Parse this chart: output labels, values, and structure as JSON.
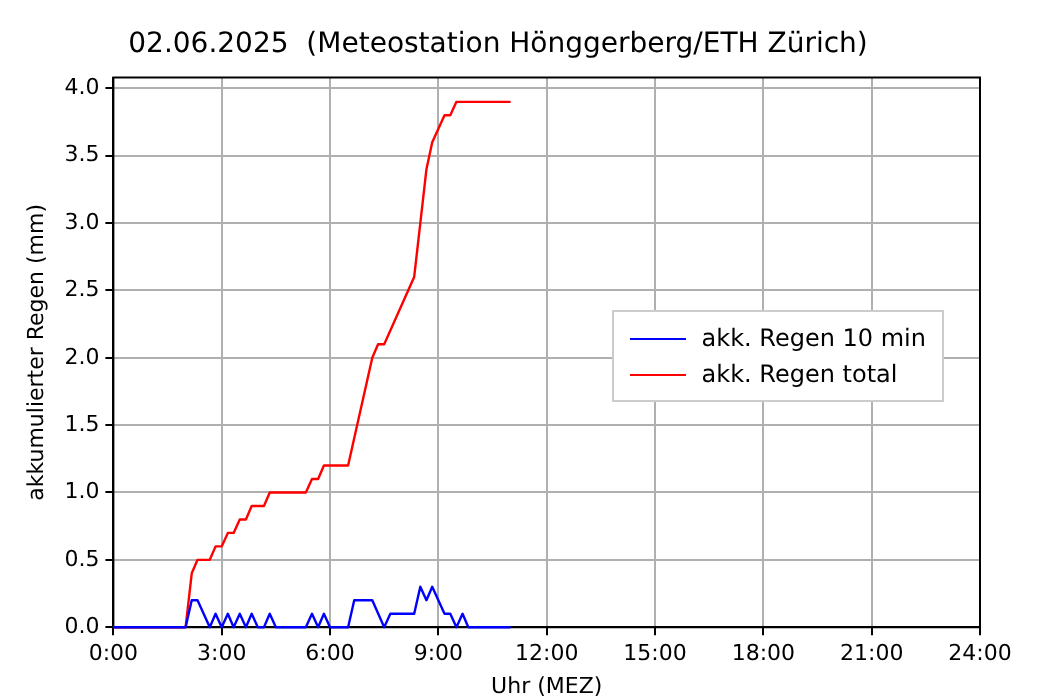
{
  "chart_data": {
    "type": "line",
    "title": "02.06.2025  (Meteostation Hönggerberg/ETH Zürich)",
    "xlabel": "Uhr (MEZ)",
    "ylabel": "akkumulierter Regen (mm)",
    "xlim": [
      0,
      24
    ],
    "xticks": [
      {
        "value": 0,
        "label": "0:00"
      },
      {
        "value": 3,
        "label": "3:00"
      },
      {
        "value": 6,
        "label": "6:00"
      },
      {
        "value": 9,
        "label": "9:00"
      },
      {
        "value": 12,
        "label": "12:00"
      },
      {
        "value": 15,
        "label": "15:00"
      },
      {
        "value": 18,
        "label": "18:00"
      },
      {
        "value": 21,
        "label": "21:00"
      },
      {
        "value": 24,
        "label": "24:00"
      }
    ],
    "ylim": [
      0,
      4.08
    ],
    "yticks": [
      {
        "value": 0,
        "label": "0.0"
      },
      {
        "value": 0.5,
        "label": "0.5"
      },
      {
        "value": 1,
        "label": "1.0"
      },
      {
        "value": 1.5,
        "label": "1.5"
      },
      {
        "value": 2,
        "label": "2.0"
      },
      {
        "value": 2.5,
        "label": "2.5"
      },
      {
        "value": 3,
        "label": "3.0"
      },
      {
        "value": 3.5,
        "label": "3.5"
      },
      {
        "value": 4,
        "label": "4.0"
      }
    ],
    "grid": true,
    "legend": "right",
    "marker": "none",
    "line_style": "solid",
    "series": [
      {
        "name": "akk. Regen 10 min",
        "color": "#0000ff",
        "x": [
          0,
          2,
          2.17,
          2.33,
          2.67,
          2.83,
          3,
          3.17,
          3.33,
          3.5,
          3.67,
          3.83,
          4,
          4.17,
          4.33,
          4.5,
          5.33,
          5.5,
          5.67,
          5.83,
          6,
          6.5,
          6.67,
          7.17,
          7.5,
          7.67,
          8.33,
          8.5,
          8.67,
          8.83,
          9.17,
          9.33,
          9.5,
          9.67,
          9.83,
          11
        ],
        "values": [
          0,
          0,
          0.2,
          0.2,
          0,
          0.1,
          0,
          0.1,
          0,
          0.1,
          0,
          0.1,
          0,
          0,
          0.1,
          0,
          0,
          0.1,
          0,
          0.1,
          0,
          0,
          0.2,
          0.2,
          0,
          0.1,
          0.1,
          0.3,
          0.2,
          0.3,
          0.1,
          0.1,
          0,
          0.1,
          0,
          0
        ]
      },
      {
        "name": "akk. Regen total",
        "color": "#ff0000",
        "x": [
          0,
          2,
          2.17,
          2.33,
          2.67,
          2.83,
          3,
          3.17,
          3.33,
          3.5,
          3.67,
          3.83,
          4.17,
          4.33,
          5.33,
          5.5,
          5.67,
          5.83,
          6.5,
          7.17,
          7.33,
          7.5,
          8.33,
          8.5,
          8.67,
          8.83,
          9,
          9.17,
          9.33,
          9.5,
          9.67,
          11
        ],
        "values": [
          0,
          0,
          0.4,
          0.5,
          0.5,
          0.6,
          0.6,
          0.7,
          0.7,
          0.8,
          0.8,
          0.9,
          0.9,
          1,
          1,
          1.1,
          1.1,
          1.2,
          1.2,
          2,
          2.1,
          2.1,
          2.6,
          3,
          3.4,
          3.6,
          3.7,
          3.8,
          3.8,
          3.9,
          3.9,
          3.9
        ]
      }
    ]
  }
}
